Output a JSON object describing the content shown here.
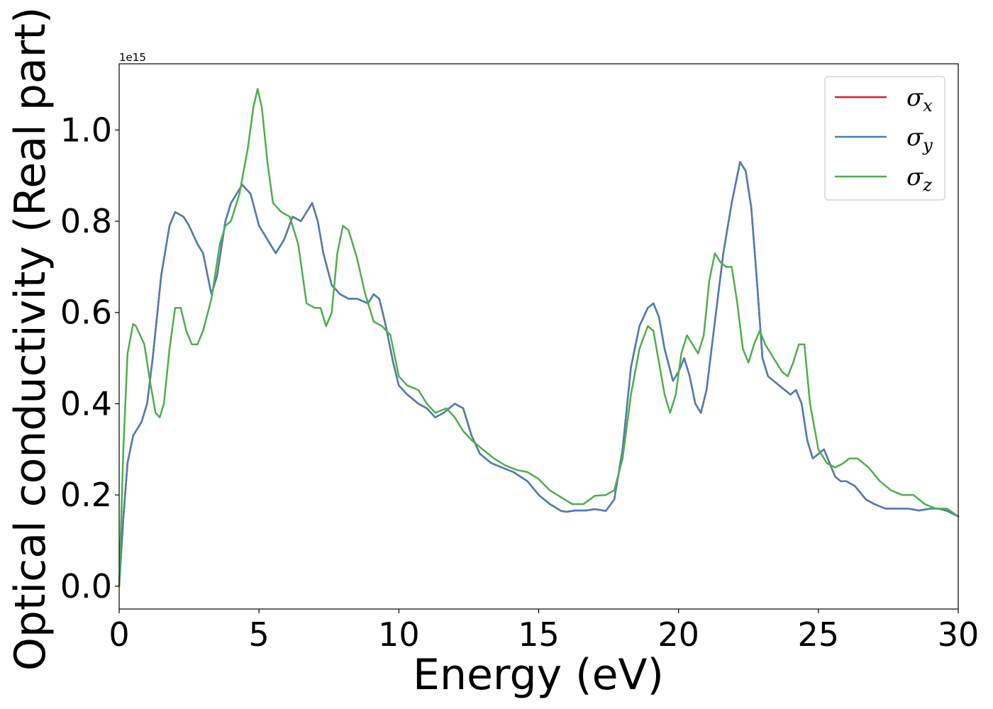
{
  "chart_data": {
    "type": "line",
    "title": "",
    "xlabel": "Energy (eV)",
    "ylabel": "Optical conductivity (Real part)",
    "y_offset_text": "1e15",
    "xlim": [
      0,
      30
    ],
    "ylim": [
      -0.05,
      1.145
    ],
    "xticks": [
      0,
      5,
      10,
      15,
      20,
      25,
      30
    ],
    "xtick_labels": [
      "0",
      "5",
      "10",
      "15",
      "20",
      "25",
      "30"
    ],
    "yticks": [
      0.0,
      0.2,
      0.4,
      0.6,
      0.8,
      1.0
    ],
    "ytick_labels": [
      "0.0",
      "0.2",
      "0.4",
      "0.6",
      "0.8",
      "1.0"
    ],
    "grid": false,
    "legend_position": "upper right",
    "series": [
      {
        "name": "σx",
        "symbol": "σ",
        "subscript": "x",
        "color": "#e41a1c",
        "x": [
          0,
          0.15,
          0.3,
          0.5,
          0.8,
          1.0,
          1.2,
          1.5,
          1.8,
          2.0,
          2.3,
          2.5,
          2.8,
          3.0,
          3.3,
          3.5,
          3.8,
          4.0,
          4.4,
          4.7,
          5.0,
          5.3,
          5.6,
          5.9,
          6.2,
          6.5,
          6.7,
          6.9,
          7.1,
          7.3,
          7.6,
          7.9,
          8.2,
          8.5,
          8.9,
          9.1,
          9.3,
          9.5,
          9.8,
          10.0,
          10.3,
          10.7,
          11.0,
          11.3,
          11.6,
          12.0,
          12.3,
          12.6,
          12.9,
          13.3,
          13.7,
          14.1,
          14.6,
          15.0,
          15.4,
          15.8,
          16.0,
          16.3,
          16.7,
          17.0,
          17.4,
          17.7,
          18.0,
          18.3,
          18.6,
          18.9,
          19.1,
          19.3,
          19.5,
          19.8,
          20.0,
          20.2,
          20.4,
          20.6,
          20.8,
          21.0,
          21.3,
          21.6,
          21.9,
          22.2,
          22.4,
          22.6,
          22.8,
          23.0,
          23.2,
          23.4,
          23.6,
          23.8,
          24.0,
          24.2,
          24.4,
          24.6,
          24.8,
          25.0,
          25.2,
          25.4,
          25.6,
          25.8,
          26.0,
          26.3,
          26.7,
          27.0,
          27.4,
          27.8,
          28.2,
          28.6,
          29.0,
          29.3,
          29.6,
          30.0
        ],
        "y": [
          0.0,
          0.15,
          0.27,
          0.33,
          0.36,
          0.4,
          0.5,
          0.68,
          0.79,
          0.82,
          0.81,
          0.79,
          0.75,
          0.73,
          0.64,
          0.68,
          0.8,
          0.84,
          0.88,
          0.86,
          0.79,
          0.76,
          0.73,
          0.76,
          0.81,
          0.8,
          0.82,
          0.84,
          0.8,
          0.73,
          0.66,
          0.64,
          0.63,
          0.63,
          0.62,
          0.64,
          0.63,
          0.58,
          0.49,
          0.44,
          0.42,
          0.4,
          0.39,
          0.37,
          0.38,
          0.4,
          0.39,
          0.33,
          0.29,
          0.27,
          0.26,
          0.25,
          0.23,
          0.2,
          0.18,
          0.165,
          0.163,
          0.166,
          0.166,
          0.169,
          0.165,
          0.19,
          0.3,
          0.48,
          0.57,
          0.61,
          0.62,
          0.59,
          0.52,
          0.45,
          0.47,
          0.5,
          0.46,
          0.4,
          0.38,
          0.43,
          0.58,
          0.73,
          0.84,
          0.93,
          0.91,
          0.83,
          0.67,
          0.5,
          0.46,
          0.45,
          0.44,
          0.43,
          0.42,
          0.43,
          0.4,
          0.32,
          0.28,
          0.29,
          0.3,
          0.27,
          0.24,
          0.23,
          0.23,
          0.22,
          0.19,
          0.18,
          0.17,
          0.17,
          0.17,
          0.166,
          0.17,
          0.17,
          0.165,
          0.153
        ]
      },
      {
        "name": "σy",
        "symbol": "σ",
        "subscript": "y",
        "color": "#4a7fb5",
        "x": [
          0,
          0.15,
          0.3,
          0.5,
          0.8,
          1.0,
          1.2,
          1.5,
          1.8,
          2.0,
          2.3,
          2.5,
          2.8,
          3.0,
          3.3,
          3.5,
          3.8,
          4.0,
          4.4,
          4.7,
          5.0,
          5.3,
          5.6,
          5.9,
          6.2,
          6.5,
          6.7,
          6.9,
          7.1,
          7.3,
          7.6,
          7.9,
          8.2,
          8.5,
          8.9,
          9.1,
          9.3,
          9.5,
          9.8,
          10.0,
          10.3,
          10.7,
          11.0,
          11.3,
          11.6,
          12.0,
          12.3,
          12.6,
          12.9,
          13.3,
          13.7,
          14.1,
          14.6,
          15.0,
          15.4,
          15.8,
          16.0,
          16.3,
          16.7,
          17.0,
          17.4,
          17.7,
          18.0,
          18.3,
          18.6,
          18.9,
          19.1,
          19.3,
          19.5,
          19.8,
          20.0,
          20.2,
          20.4,
          20.6,
          20.8,
          21.0,
          21.3,
          21.6,
          21.9,
          22.2,
          22.4,
          22.6,
          22.8,
          23.0,
          23.2,
          23.4,
          23.6,
          23.8,
          24.0,
          24.2,
          24.4,
          24.6,
          24.8,
          25.0,
          25.2,
          25.4,
          25.6,
          25.8,
          26.0,
          26.3,
          26.7,
          27.0,
          27.4,
          27.8,
          28.2,
          28.6,
          29.0,
          29.3,
          29.6,
          30.0
        ],
        "y": [
          0.0,
          0.15,
          0.27,
          0.33,
          0.36,
          0.4,
          0.5,
          0.68,
          0.79,
          0.82,
          0.81,
          0.79,
          0.75,
          0.73,
          0.64,
          0.68,
          0.8,
          0.84,
          0.88,
          0.86,
          0.79,
          0.76,
          0.73,
          0.76,
          0.81,
          0.8,
          0.82,
          0.84,
          0.8,
          0.73,
          0.66,
          0.64,
          0.63,
          0.63,
          0.62,
          0.64,
          0.63,
          0.58,
          0.49,
          0.44,
          0.42,
          0.4,
          0.39,
          0.37,
          0.38,
          0.4,
          0.39,
          0.33,
          0.29,
          0.27,
          0.26,
          0.25,
          0.23,
          0.2,
          0.18,
          0.165,
          0.163,
          0.166,
          0.166,
          0.169,
          0.165,
          0.19,
          0.3,
          0.48,
          0.57,
          0.61,
          0.62,
          0.59,
          0.52,
          0.45,
          0.47,
          0.5,
          0.46,
          0.4,
          0.38,
          0.43,
          0.58,
          0.73,
          0.84,
          0.93,
          0.91,
          0.83,
          0.67,
          0.5,
          0.46,
          0.45,
          0.44,
          0.43,
          0.42,
          0.43,
          0.4,
          0.32,
          0.28,
          0.29,
          0.3,
          0.27,
          0.24,
          0.23,
          0.23,
          0.22,
          0.19,
          0.18,
          0.17,
          0.17,
          0.17,
          0.166,
          0.17,
          0.17,
          0.165,
          0.153
        ]
      },
      {
        "name": "σz",
        "symbol": "σ",
        "subscript": "z",
        "color": "#4daf4a",
        "x": [
          0,
          0.15,
          0.3,
          0.5,
          0.6,
          0.9,
          1.1,
          1.3,
          1.45,
          1.6,
          1.8,
          2.0,
          2.2,
          2.4,
          2.6,
          2.8,
          3.0,
          3.3,
          3.6,
          3.8,
          4.0,
          4.3,
          4.6,
          4.8,
          4.95,
          5.1,
          5.3,
          5.5,
          5.8,
          6.1,
          6.4,
          6.7,
          7.0,
          7.2,
          7.4,
          7.6,
          7.8,
          8.0,
          8.2,
          8.5,
          8.8,
          9.1,
          9.4,
          9.7,
          10.0,
          10.3,
          10.7,
          11.0,
          11.3,
          11.7,
          12.0,
          12.3,
          12.6,
          13.0,
          13.4,
          13.8,
          14.2,
          14.6,
          15.0,
          15.4,
          15.8,
          16.2,
          16.6,
          17.0,
          17.4,
          17.7,
          18.0,
          18.3,
          18.6,
          18.9,
          19.1,
          19.3,
          19.5,
          19.7,
          19.9,
          20.1,
          20.3,
          20.5,
          20.7,
          20.9,
          21.1,
          21.3,
          21.5,
          21.7,
          21.9,
          22.1,
          22.3,
          22.5,
          22.7,
          22.9,
          23.1,
          23.4,
          23.7,
          23.9,
          24.1,
          24.3,
          24.5,
          24.7,
          25.0,
          25.3,
          25.6,
          25.9,
          26.1,
          26.4,
          26.8,
          27.2,
          27.6,
          28.0,
          28.4,
          28.8,
          29.2,
          29.6,
          30.0
        ],
        "y": [
          0.0,
          0.3,
          0.51,
          0.575,
          0.57,
          0.53,
          0.45,
          0.38,
          0.37,
          0.4,
          0.52,
          0.61,
          0.61,
          0.56,
          0.53,
          0.53,
          0.56,
          0.63,
          0.75,
          0.79,
          0.8,
          0.86,
          0.96,
          1.05,
          1.09,
          1.05,
          0.93,
          0.84,
          0.82,
          0.81,
          0.75,
          0.62,
          0.61,
          0.61,
          0.57,
          0.6,
          0.73,
          0.79,
          0.78,
          0.72,
          0.64,
          0.58,
          0.57,
          0.55,
          0.46,
          0.44,
          0.43,
          0.4,
          0.38,
          0.39,
          0.37,
          0.34,
          0.32,
          0.3,
          0.28,
          0.265,
          0.255,
          0.25,
          0.235,
          0.21,
          0.195,
          0.18,
          0.18,
          0.198,
          0.2,
          0.21,
          0.28,
          0.42,
          0.52,
          0.57,
          0.56,
          0.49,
          0.42,
          0.38,
          0.42,
          0.51,
          0.55,
          0.53,
          0.51,
          0.55,
          0.67,
          0.73,
          0.71,
          0.7,
          0.7,
          0.62,
          0.52,
          0.49,
          0.53,
          0.56,
          0.53,
          0.5,
          0.47,
          0.46,
          0.49,
          0.53,
          0.53,
          0.4,
          0.3,
          0.27,
          0.26,
          0.27,
          0.28,
          0.28,
          0.26,
          0.23,
          0.21,
          0.2,
          0.2,
          0.18,
          0.17,
          0.17,
          0.153
        ]
      }
    ]
  }
}
